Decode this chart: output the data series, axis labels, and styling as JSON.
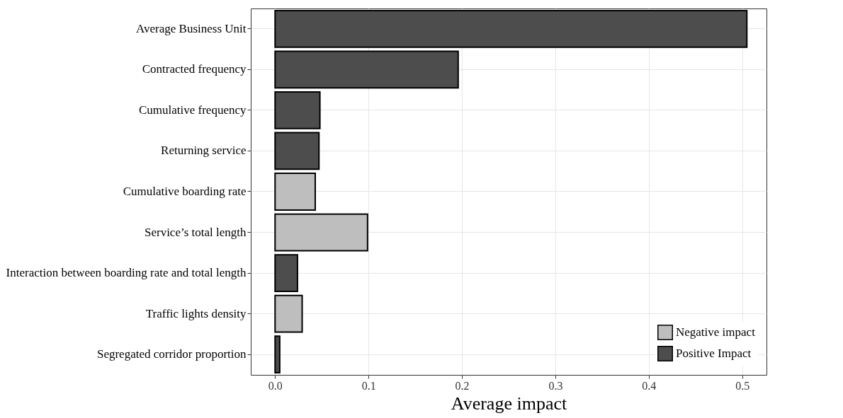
{
  "chart_data": {
    "type": "bar",
    "orientation": "horizontal",
    "xlabel": "Average impact",
    "categories": [
      "Average Business Unit",
      "Contracted frequency",
      "Cumulative frequency",
      "Returning service",
      "Cumulative boarding rate",
      "Service’s total length",
      "Interaction between boarding rate and total length",
      "Traffic lights density",
      "Segregated corridor proportion"
    ],
    "series": [
      {
        "name": "Negative impact",
        "color": "#bebebe",
        "values": [
          null,
          null,
          null,
          null,
          0.043,
          0.099,
          null,
          0.029,
          null
        ]
      },
      {
        "name": "Positive Impact",
        "color": "#4d4d4d",
        "values": [
          0.505,
          0.196,
          0.048,
          0.047,
          null,
          null,
          0.024,
          null,
          0.005
        ]
      }
    ],
    "xlim": [
      -0.026,
      0.526
    ],
    "xticks": [
      {
        "value": 0,
        "label": "0.0"
      },
      0.1,
      0.2,
      0.3,
      0.4,
      0.5
    ],
    "grid": true,
    "legend": "bottom right"
  }
}
